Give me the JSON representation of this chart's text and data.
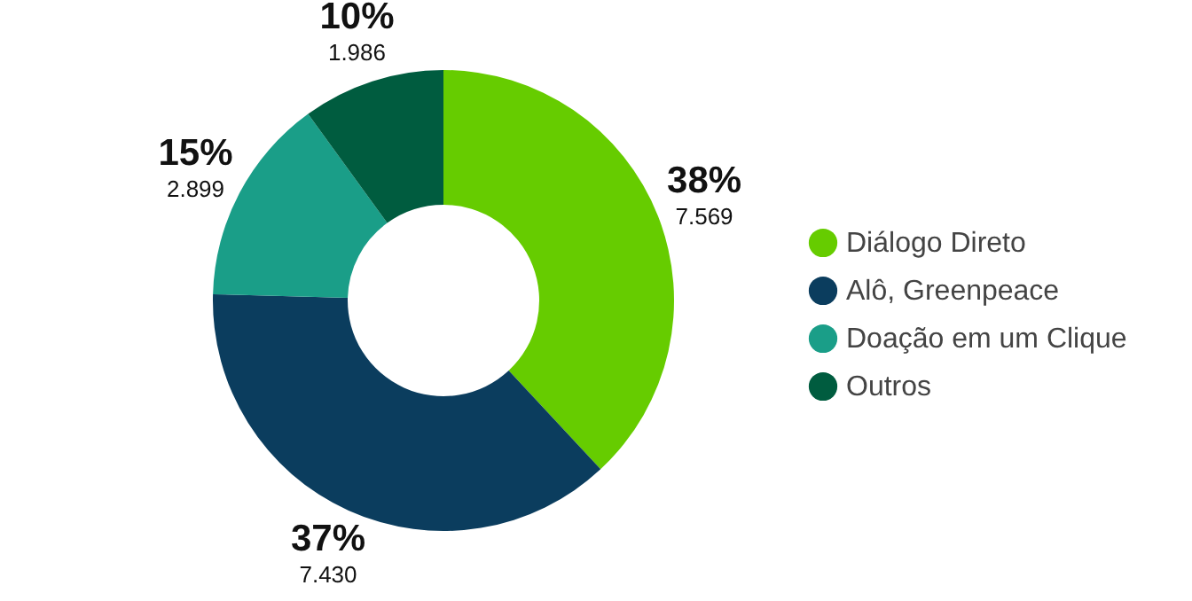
{
  "chart_data": {
    "type": "donut",
    "categories": [
      "Diálogo Direto",
      "Alô, Greenpeace",
      "Doação em um Clique",
      "Outros"
    ],
    "values": [
      7569,
      7430,
      2899,
      1986
    ],
    "value_labels": [
      "7.569",
      "7.430",
      "2.899",
      "1.986"
    ],
    "annotations": [
      "38%",
      "37%",
      "15%",
      "10%"
    ],
    "colors": [
      "#66cc00",
      "#0b3d5e",
      "#1a9e88",
      "#005c3f"
    ],
    "legend": "right"
  }
}
